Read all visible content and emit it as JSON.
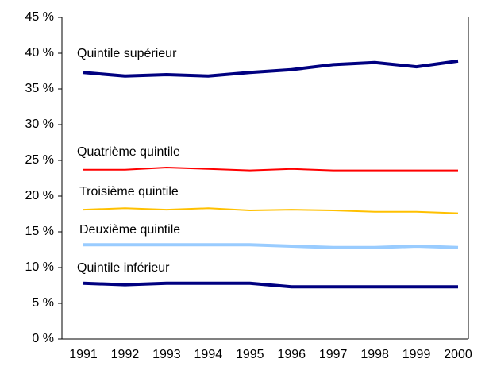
{
  "chart_data": {
    "type": "line",
    "categories": [
      "1991",
      "1992",
      "1993",
      "1994",
      "1995",
      "1996",
      "1997",
      "1998",
      "1999",
      "2000"
    ],
    "series": [
      {
        "name": "Quintile supérieur",
        "color": "#000080",
        "width": 4,
        "values": [
          37.3,
          36.8,
          37.0,
          36.8,
          37.3,
          37.7,
          38.4,
          38.7,
          38.1,
          38.9
        ]
      },
      {
        "name": "Quatrième quintile",
        "color": "#ff0000",
        "width": 2,
        "values": [
          23.7,
          23.7,
          24.0,
          23.8,
          23.6,
          23.8,
          23.6,
          23.6,
          23.6,
          23.6
        ]
      },
      {
        "name": "Troisième quintile",
        "color": "#ffc000",
        "width": 2,
        "values": [
          18.1,
          18.3,
          18.1,
          18.3,
          18.0,
          18.1,
          18.0,
          17.8,
          17.8,
          17.6
        ]
      },
      {
        "name": "Deuxième quintile",
        "color": "#99ccff",
        "width": 4,
        "values": [
          13.2,
          13.2,
          13.2,
          13.2,
          13.2,
          13.0,
          12.8,
          12.8,
          13.0,
          12.8
        ]
      },
      {
        "name": "Quintile inférieur",
        "color": "#000080",
        "width": 4,
        "values": [
          7.8,
          7.6,
          7.8,
          7.8,
          7.8,
          7.3,
          7.3,
          7.3,
          7.3,
          7.3
        ]
      }
    ],
    "ylim": [
      0,
      45
    ],
    "yticks": [
      {
        "value": 0,
        "label": "0 %"
      },
      {
        "value": 5,
        "label": "5 %"
      },
      {
        "value": 10,
        "label": "10 %"
      },
      {
        "value": 15,
        "label": "15 %"
      },
      {
        "value": 20,
        "label": "20 %"
      },
      {
        "value": 25,
        "label": "25 %"
      },
      {
        "value": 30,
        "label": "30 %"
      },
      {
        "value": 35,
        "label": "35 %"
      },
      {
        "value": 40,
        "label": "40 %"
      },
      {
        "value": 45,
        "label": "45 %"
      }
    ]
  }
}
